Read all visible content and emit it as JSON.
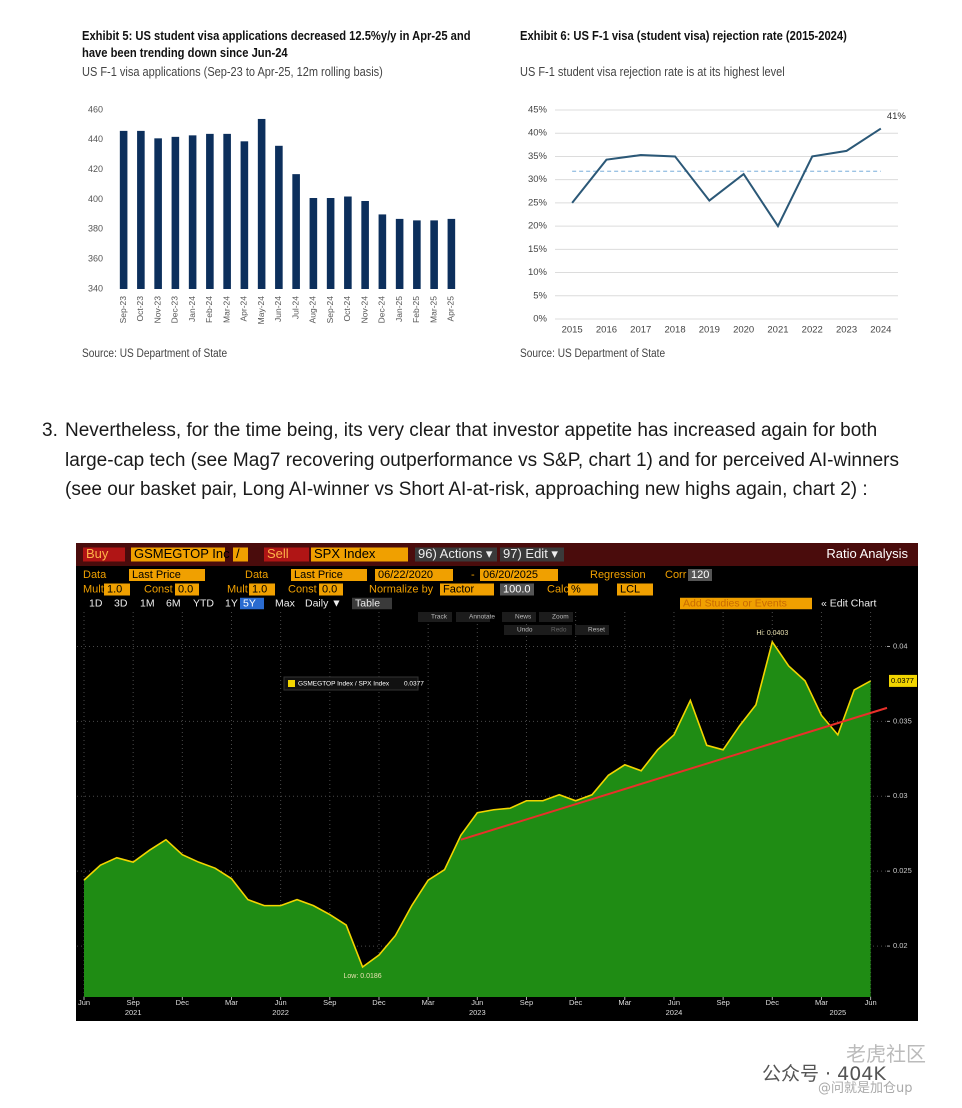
{
  "chart_data": [
    {
      "type": "bar",
      "title": "Exhibit 5: US student visa applications decreased 12.5%y/y in Apr-25 and have been trending down since Jun-24",
      "subtitle": "US F-1 visa applications (Sep-23 to Apr-25, 12m rolling basis)",
      "source": "Source: US Department of State",
      "categories": [
        "Sep-23",
        "Oct-23",
        "Nov-23",
        "Dec-23",
        "Jan-24",
        "Feb-24",
        "Mar-24",
        "Apr-24",
        "May-24",
        "Jun-24",
        "Jul-24",
        "Aug-24",
        "Sep-24",
        "Oct-24",
        "Nov-24",
        "Dec-24",
        "Jan-25",
        "Feb-25",
        "Mar-25",
        "Apr-25"
      ],
      "values": [
        446,
        446,
        441,
        442,
        443,
        444,
        444,
        439,
        454,
        436,
        417,
        401,
        401,
        402,
        399,
        390,
        387,
        386,
        386,
        387
      ],
      "color": "#0c2f5c",
      "ylim": [
        340,
        460
      ],
      "yticks": [
        340,
        360,
        380,
        400,
        420,
        440,
        460
      ],
      "grid": false
    },
    {
      "type": "line",
      "title": "Exhibit 6: US F-1 visa (student visa) rejection rate (2015-2024)",
      "subtitle": "US F-1 student visa rejection rate is at its highest level",
      "source": "Source: US Department of State",
      "categories": [
        "2015",
        "2016",
        "2017",
        "2018",
        "2019",
        "2020",
        "2021",
        "2022",
        "2023",
        "2024"
      ],
      "values": [
        25,
        34.3,
        35.3,
        35,
        25.5,
        31.2,
        20,
        35,
        36.2,
        41
      ],
      "value_labels": [
        null,
        null,
        null,
        null,
        null,
        null,
        null,
        null,
        null,
        "41%"
      ],
      "color": "#2b5877",
      "reference_line": {
        "value": 31.8,
        "color": "#9cc3e4"
      },
      "ylim": [
        0,
        45
      ],
      "yticks": [
        {
          "value": 0,
          "label": "0%"
        },
        {
          "value": 5,
          "label": "5%"
        },
        {
          "value": 10,
          "label": "10%"
        },
        {
          "value": 15,
          "label": "15%"
        },
        {
          "value": 20,
          "label": "20%"
        },
        {
          "value": 25,
          "label": "25%"
        },
        {
          "value": 30,
          "label": "30%"
        },
        {
          "value": 35,
          "label": "35%"
        },
        {
          "value": 40,
          "label": "40%"
        },
        {
          "value": 45,
          "label": "45%"
        }
      ],
      "grid": true
    },
    {
      "type": "area",
      "x": [
        "2021-06",
        "2021-07",
        "2021-08",
        "2021-09",
        "2021-10",
        "2021-11",
        "2021-12",
        "2022-01",
        "2022-02",
        "2022-03",
        "2022-04",
        "2022-05",
        "2022-06",
        "2022-07",
        "2022-08",
        "2022-09",
        "2022-10",
        "2022-11",
        "2022-12",
        "2023-01",
        "2023-02",
        "2023-03",
        "2023-04",
        "2023-05",
        "2023-06",
        "2023-07",
        "2023-08",
        "2023-09",
        "2023-10",
        "2023-11",
        "2023-12",
        "2024-01",
        "2024-02",
        "2024-03",
        "2024-04",
        "2024-05",
        "2024-06",
        "2024-07",
        "2024-08",
        "2024-09",
        "2024-10",
        "2024-11",
        "2024-12",
        "2025-01",
        "2025-02",
        "2025-03",
        "2025-04",
        "2025-05",
        "2025-06"
      ],
      "series": [
        {
          "name": "GSMEGTOP Index / SPX Index",
          "color": "#1f8c14",
          "line_color": "#f2d500",
          "values": [
            0.0244,
            0.0254,
            0.0259,
            0.0256,
            0.0264,
            0.0271,
            0.0261,
            0.0256,
            0.0252,
            0.0245,
            0.0231,
            0.0227,
            0.0227,
            0.0231,
            0.0227,
            0.0221,
            0.0214,
            0.0186,
            0.0194,
            0.0207,
            0.0227,
            0.0244,
            0.0251,
            0.0274,
            0.0289,
            0.0291,
            0.0292,
            0.0297,
            0.0297,
            0.0301,
            0.0297,
            0.0301,
            0.0314,
            0.0321,
            0.0317,
            0.0331,
            0.0341,
            0.0364,
            0.0334,
            0.0331,
            0.0347,
            0.0361,
            0.0403,
            0.0387,
            0.0377,
            0.0354,
            0.0341,
            0.0371,
            0.0377
          ]
        }
      ],
      "trend_line": {
        "x": [
          "2023-05",
          "2025-07"
        ],
        "values": [
          0.0271,
          0.0359
        ],
        "color": "#e8302a"
      },
      "annotations": [
        {
          "text": "Hi: 0.0403",
          "x": "2024-12",
          "y": 0.0403
        },
        {
          "text": "Low: 0.0186",
          "x": "2022-11",
          "y": 0.0186
        }
      ],
      "xlim": [
        "2021-06",
        "2025-07"
      ],
      "xticks": [
        {
          "value": "2021-06",
          "label": "Jun"
        },
        {
          "value": "2021-09",
          "label": "Sep"
        },
        {
          "value": "2021-12",
          "label": "Dec"
        },
        {
          "value": "2022-03",
          "label": "Mar"
        },
        {
          "value": "2022-06",
          "label": "Jun"
        },
        {
          "value": "2022-09",
          "label": "Sep"
        },
        {
          "value": "2022-12",
          "label": "Dec"
        },
        {
          "value": "2023-03",
          "label": "Mar"
        },
        {
          "value": "2023-06",
          "label": "Jun"
        },
        {
          "value": "2023-09",
          "label": "Sep"
        },
        {
          "value": "2023-12",
          "label": "Dec"
        },
        {
          "value": "2024-03",
          "label": "Mar"
        },
        {
          "value": "2024-06",
          "label": "Jun"
        },
        {
          "value": "2024-09",
          "label": "Sep"
        },
        {
          "value": "2024-12",
          "label": "Dec"
        },
        {
          "value": "2025-03",
          "label": "Mar"
        },
        {
          "value": "2025-06",
          "label": "Jun"
        }
      ],
      "year_ticks": [
        {
          "value": "2021-09",
          "label": "2021"
        },
        {
          "value": "2022-06",
          "label": "2022"
        },
        {
          "value": "2023-06",
          "label": "2023"
        },
        {
          "value": "2024-06",
          "label": "2024"
        },
        {
          "value": "2025-04",
          "label": "2025"
        }
      ],
      "ylim": [
        0.0166,
        0.0423
      ],
      "yticks": [
        0.02,
        0.025,
        0.03,
        0.035,
        0.04
      ],
      "grid": true
    }
  ],
  "paragraph": {
    "number": "3.",
    "text": "Nevertheless, for the time being, its very clear that investor appetite has increased again for both large-cap tech (see Mag7 recovering outperformance vs S&P, chart 1) and for perceived AI-winners (see our basket pair, Long AI-winner vs Short AI-at-risk, approaching new highs again, chart 2) :"
  },
  "terminal": {
    "row1": [
      "Buy",
      "GSMEGTOP Inc",
      "/",
      "Sell",
      "SPX Index",
      "96) Actions ▾",
      "97) Edit ▾",
      "Ratio Analysis"
    ],
    "row2": [
      "Data",
      "Last Price",
      "Data",
      "Last Price",
      "06/22/2020",
      "-",
      "06/20/2025",
      "Regression",
      "Corr",
      "120"
    ],
    "row3": [
      "Mult",
      "1.0",
      "Const",
      "0.0",
      "Mult",
      "1.0",
      "Const",
      "0.0",
      "Normalize by",
      "Factor",
      "100.0",
      "Calc",
      "%",
      "LCL"
    ],
    "row4": [
      "1D",
      "3D",
      "1M",
      "6M",
      "YTD",
      "1Y",
      "5Y",
      "Max",
      "Daily ▼",
      "Table",
      "Add Studies or Events",
      "« Edit Chart"
    ],
    "tools": [
      "Track",
      "Annotate",
      "News",
      "Zoom",
      "Undo",
      "Redo",
      "Reset"
    ]
  },
  "watermark": [
    "老虎社区",
    "公众号 · 404K",
    "@问就是加仓up"
  ]
}
